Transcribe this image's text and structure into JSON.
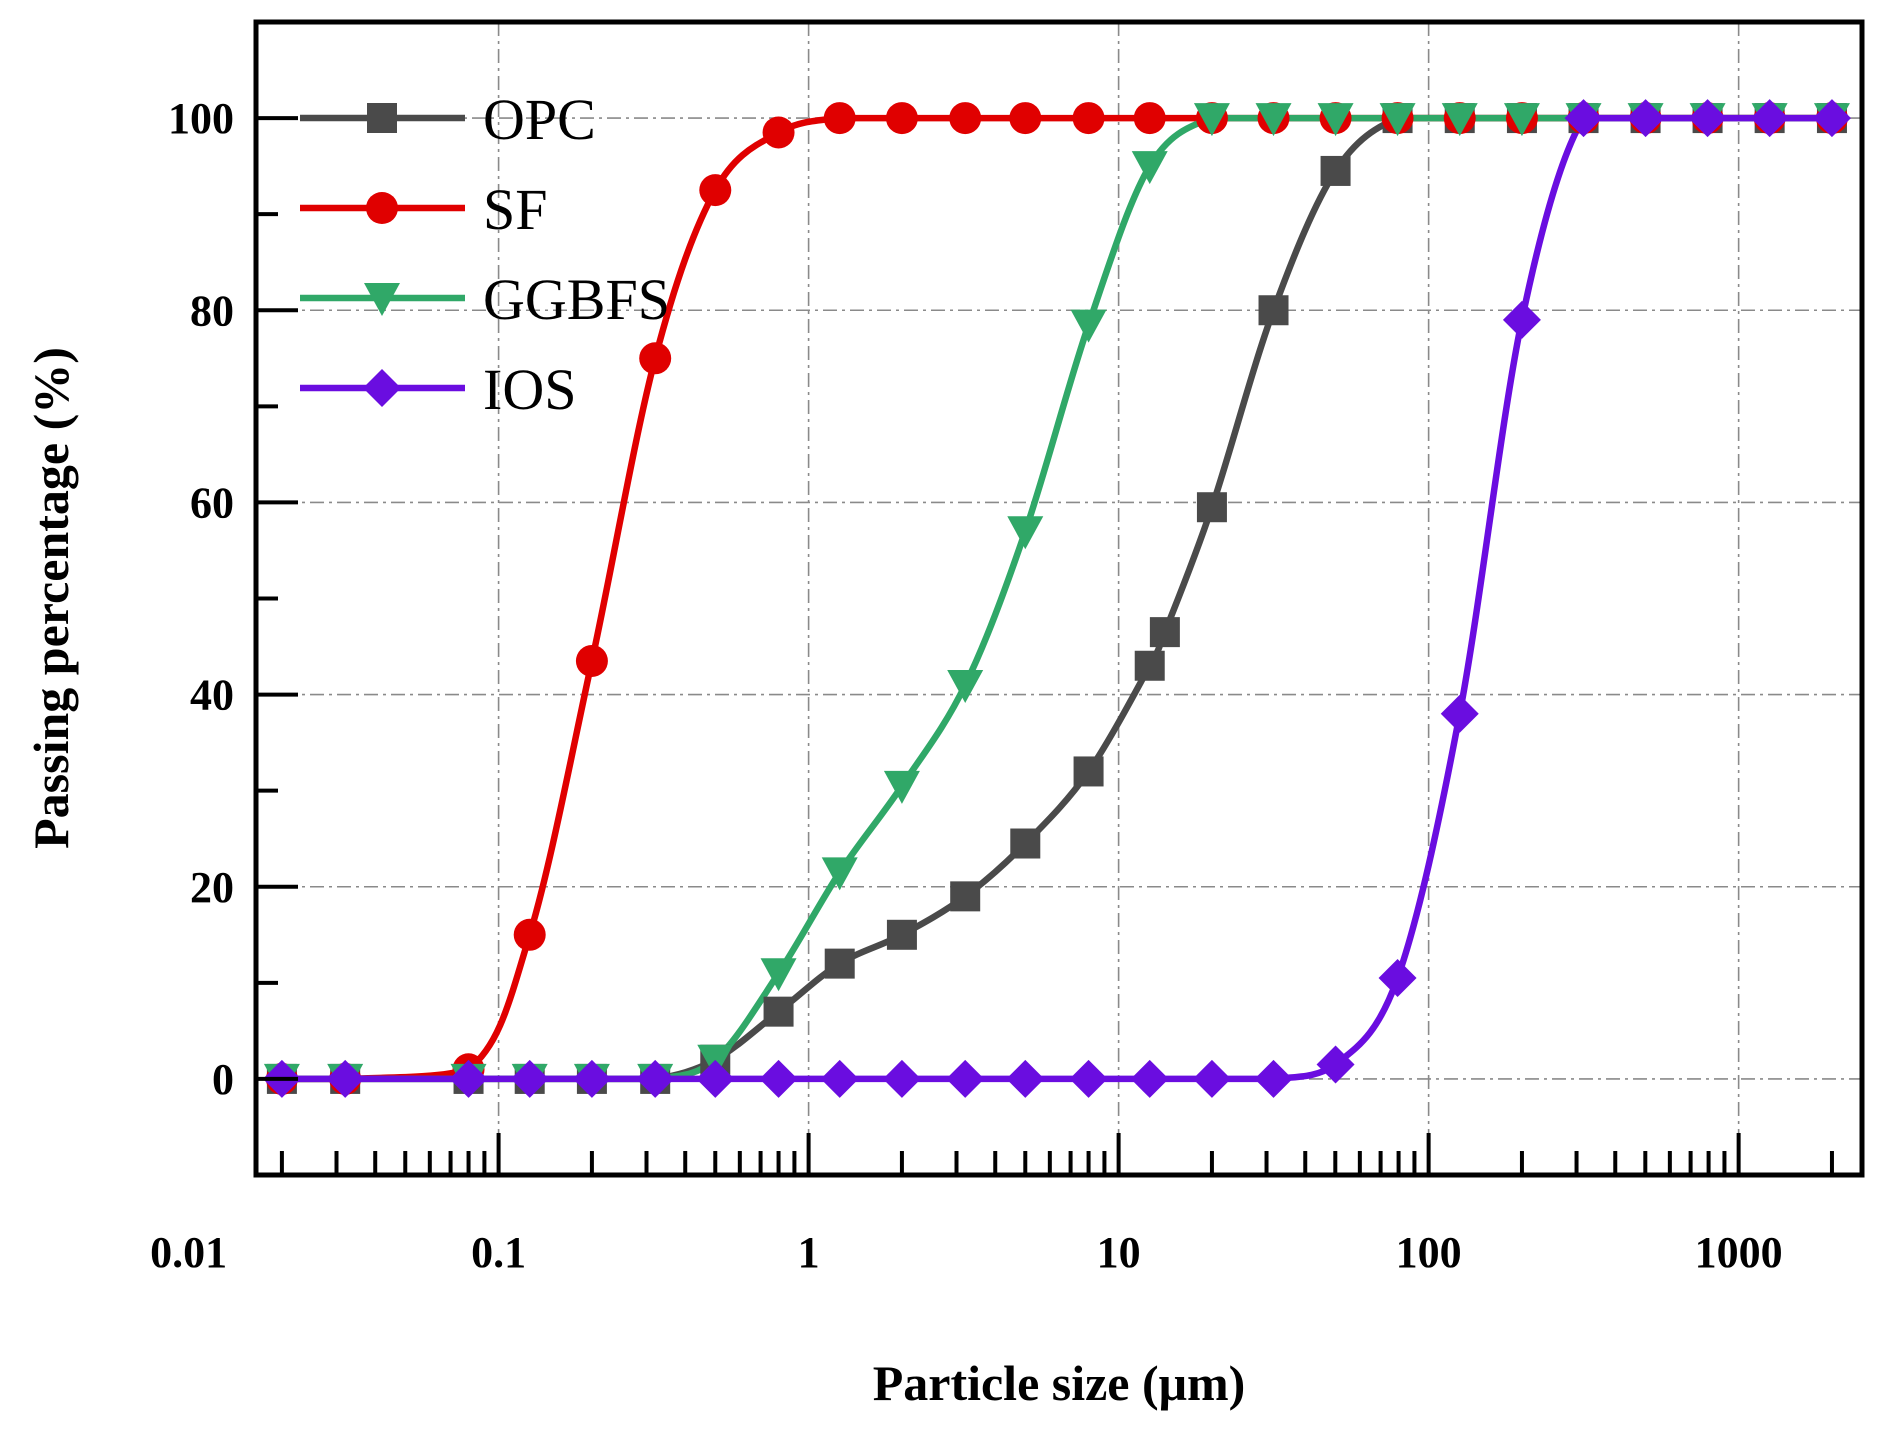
{
  "chart_data": {
    "type": "line",
    "xscale": "log",
    "xlabel": "Particle size (μm)",
    "ylabel": "Passing percentage (%)",
    "xlim": [
      0.0165,
      2500
    ],
    "ylim": [
      -10,
      110
    ],
    "xticks": [
      {
        "value": 0.01,
        "label": "0.01"
      },
      {
        "value": 0.1,
        "label": "0.1"
      },
      {
        "value": 1,
        "label": "1"
      },
      {
        "value": 10,
        "label": "10"
      },
      {
        "value": 100,
        "label": "100"
      },
      {
        "value": 1000,
        "label": "1000"
      }
    ],
    "yticks": [
      {
        "value": 0,
        "label": "0"
      },
      {
        "value": 20,
        "label": "20"
      },
      {
        "value": 40,
        "label": "40"
      },
      {
        "value": 60,
        "label": "60"
      },
      {
        "value": 80,
        "label": "80"
      },
      {
        "value": 100,
        "label": "100"
      }
    ],
    "legend_position": "top-left",
    "grid": true,
    "series": [
      {
        "name": "OPC",
        "color": "#4a4a4a",
        "marker": "square",
        "x": [
          0.02,
          0.032,
          0.08,
          0.126,
          0.2,
          0.32,
          0.5,
          0.8,
          1.26,
          2.0,
          3.2,
          5.0,
          8.0,
          12.6,
          14.1,
          20.0,
          31.6,
          50.1,
          79.4,
          126,
          200,
          316,
          501,
          794,
          1259,
          2000
        ],
        "y": [
          0,
          0,
          0,
          0,
          0,
          0,
          2,
          7,
          12,
          15,
          19,
          24.5,
          32,
          43,
          46.5,
          59.5,
          80,
          94.5,
          100,
          100,
          100,
          100,
          100,
          100,
          100,
          100
        ]
      },
      {
        "name": "SF",
        "color": "#e00000",
        "marker": "circle",
        "x": [
          0.02,
          0.032,
          0.08,
          0.126,
          0.2,
          0.32,
          0.5,
          0.8,
          1.26,
          2.0,
          3.2,
          5.0,
          8.0,
          12.6,
          20.0,
          31.6,
          50.1,
          79.4,
          126,
          200,
          316,
          501,
          794,
          1259,
          2000
        ],
        "y": [
          0,
          0,
          1,
          15,
          43.5,
          75,
          92.5,
          98.5,
          100,
          100,
          100,
          100,
          100,
          100,
          100,
          100,
          100,
          100,
          100,
          100,
          100,
          100,
          100,
          100,
          100
        ]
      },
      {
        "name": "GGBFS",
        "color": "#30a868",
        "marker": "triangle-down",
        "x": [
          0.02,
          0.032,
          0.08,
          0.126,
          0.2,
          0.32,
          0.5,
          0.8,
          1.26,
          2.0,
          3.2,
          5.0,
          8.0,
          12.6,
          20.0,
          31.6,
          50.1,
          79.4,
          126,
          200,
          316,
          501,
          794,
          1259,
          2000
        ],
        "y": [
          0,
          0,
          0,
          0,
          0,
          0,
          2,
          11,
          21.5,
          30.5,
          41,
          57,
          78.5,
          95,
          100,
          100,
          100,
          100,
          100,
          100,
          100,
          100,
          100,
          100,
          100
        ]
      },
      {
        "name": "IOS",
        "color": "#6a0de0",
        "marker": "diamond",
        "x": [
          0.02,
          0.032,
          0.08,
          0.126,
          0.2,
          0.32,
          0.5,
          0.8,
          1.26,
          2.0,
          3.2,
          5.0,
          8.0,
          12.6,
          20.0,
          31.6,
          50.1,
          79.4,
          126,
          200,
          316,
          501,
          794,
          1259,
          2000
        ],
        "y": [
          0,
          0,
          0,
          0,
          0,
          0,
          0,
          0,
          0,
          0,
          0,
          0,
          0,
          0,
          0,
          0,
          1.5,
          10.5,
          38,
          79,
          100,
          100,
          100,
          100,
          100
        ]
      }
    ]
  }
}
